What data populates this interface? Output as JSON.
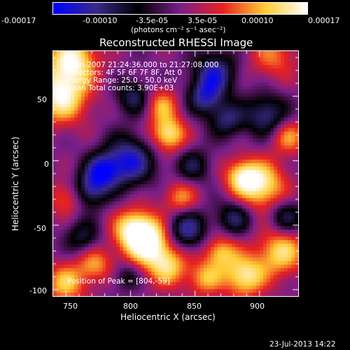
{
  "colorbar": {
    "tick_labels": [
      "-0.00017",
      "-0.00010",
      "-3.5e-05",
      "3.5e-05",
      "0.00010",
      "0.00017"
    ],
    "units": "(photons cm⁻² s⁻¹ asec⁻²)",
    "colors": [
      "#0000ff",
      "#3a2a8a",
      "#000000",
      "#7a1f8a",
      "#e82020",
      "#ffcc33",
      "#ffffff"
    ]
  },
  "title": "Reconstructed RHESSI Image",
  "info": {
    "time": "9-Jan-2007 21:24:36.000 to 21:27:08.000",
    "detectors": "Detectors: 4F 5F 6F 7F 8F, Att 0",
    "energy": "Energy Range: 25.0 - 50.0 keV",
    "clean": "Clean    Total counts: 3.90E+03"
  },
  "peak": "Position of Peak = [804,-59]",
  "axes": {
    "xlabel": "Heliocentric X (arcsec)",
    "ylabel": "Heliocentric Y (arcsec)",
    "xticks": [
      "750",
      "800",
      "850",
      "900"
    ],
    "yticks": [
      "50",
      "0",
      "-50",
      "-100"
    ],
    "xlim": [
      740,
      930
    ],
    "ylim": [
      -105,
      85
    ]
  },
  "footer_date": "23-Jul-2013 14:22"
}
